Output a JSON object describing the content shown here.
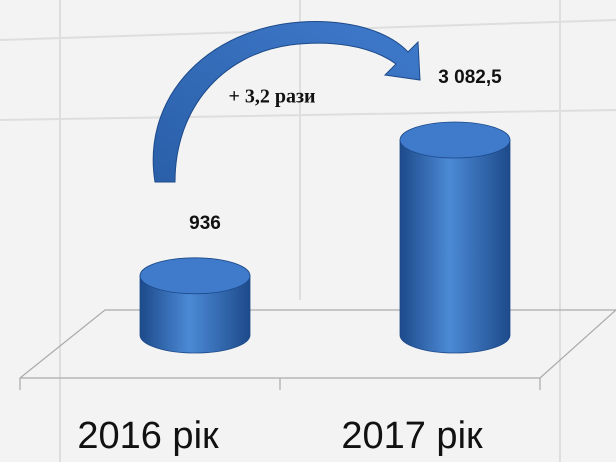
{
  "chart_data": {
    "type": "cylinder-bar",
    "categories": [
      "2016 рік",
      "2017 рік"
    ],
    "values": [
      936,
      3082.5
    ],
    "value_labels": [
      "936",
      "3 082,5"
    ],
    "color": "#3a70c0",
    "annotation": "+ 3,2 рази"
  }
}
